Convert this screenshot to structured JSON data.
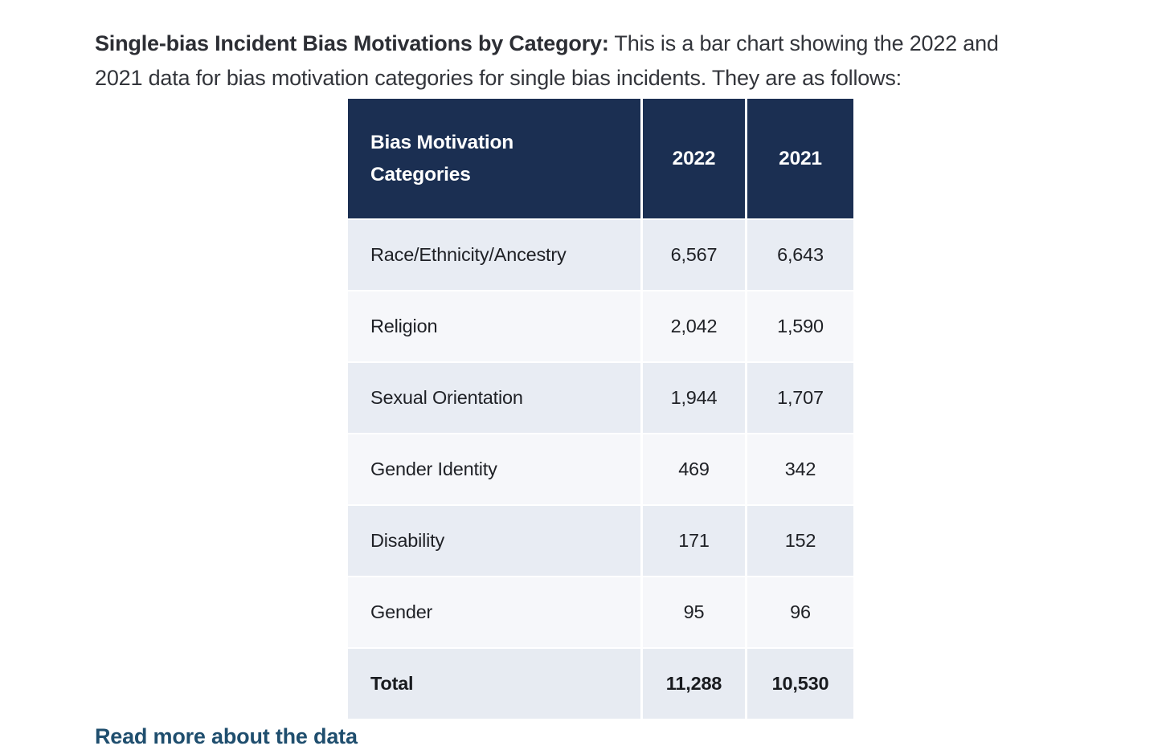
{
  "page": {
    "intro_bold": "Single-bias Incident Bias Motivations by Category:",
    "intro_rest": " This is a bar chart showing the 2022 and\n2021 data for bias motivation categories for single bias incidents. They are as follows:",
    "footer_link_label": "Read more about the data"
  },
  "colors": {
    "header_bg": "#1b2f52",
    "row_alt_bg": "#e8ecf3",
    "row_bg": "#f6f7fa",
    "total_row_bg": "#e7ebf2",
    "link": "#1f4e6e"
  },
  "table": {
    "header": {
      "category": "Bias Motivation\nCategories",
      "col_2022": "2022",
      "col_2021": "2021"
    },
    "rows": [
      {
        "category": "Race/Ethnicity/Ancestry",
        "y2022": "6,567",
        "y2021": "6,643"
      },
      {
        "category": "Religion",
        "y2022": "2,042",
        "y2021": "1,590"
      },
      {
        "category": "Sexual Orientation",
        "y2022": "1,944",
        "y2021": "1,707"
      },
      {
        "category": "Gender Identity",
        "y2022": "469",
        "y2021": "342"
      },
      {
        "category": "Disability",
        "y2022": "171",
        "y2021": "152"
      },
      {
        "category": "Gender",
        "y2022": "95",
        "y2021": "96"
      }
    ],
    "total": {
      "category": "Total",
      "y2022": "11,288",
      "y2021": "10,530"
    }
  },
  "chart_data": {
    "type": "table",
    "title": "Single-bias Incident Bias Motivations by Category",
    "categories": [
      "Race/Ethnicity/Ancestry",
      "Religion",
      "Sexual Orientation",
      "Gender Identity",
      "Disability",
      "Gender",
      "Total"
    ],
    "series": [
      {
        "name": "2022",
        "values": [
          6567,
          2042,
          1944,
          469,
          171,
          95,
          11288
        ]
      },
      {
        "name": "2021",
        "values": [
          6643,
          1590,
          1707,
          342,
          152,
          96,
          10530
        ]
      }
    ]
  }
}
